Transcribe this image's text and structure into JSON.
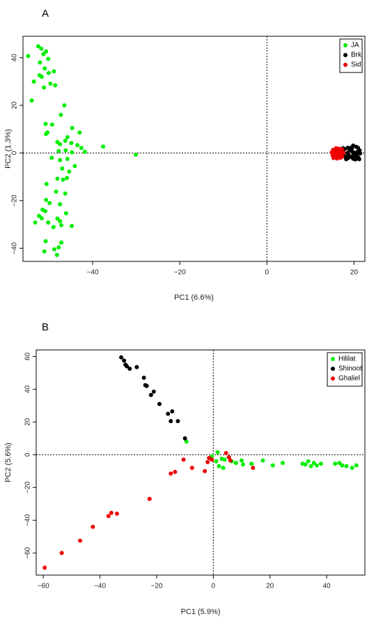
{
  "chart_data": [
    {
      "type": "scatter",
      "panel_label": "A",
      "xlabel": "PC1 (6.6%)",
      "ylabel": "PC2 (1.3%)",
      "xlim": [
        -56,
        22.5
      ],
      "ylim": [
        -45.5,
        49
      ],
      "xticks": [
        -40,
        -20,
        0,
        20
      ],
      "yticks": [
        -40,
        -20,
        0,
        20,
        40
      ],
      "reference_lines": {
        "x": 0,
        "y": 0
      },
      "legend_position": "top-right",
      "series": [
        {
          "name": "JA",
          "color": "#00ee00",
          "points": [
            [
              -52.5,
              44.8
            ],
            [
              -51.8,
              43.8
            ],
            [
              -51.3,
              41.5
            ],
            [
              -50.7,
              42.6
            ],
            [
              -54.8,
              40.7
            ],
            [
              -50.2,
              39.5
            ],
            [
              -52.1,
              38.0
            ],
            [
              -51.0,
              35.5
            ],
            [
              -48.9,
              34.3
            ],
            [
              -50.1,
              33.6
            ],
            [
              -52.2,
              32.6
            ],
            [
              -51.7,
              32.0
            ],
            [
              -53.5,
              30.0
            ],
            [
              -49.7,
              29.1
            ],
            [
              -48.6,
              28.4
            ],
            [
              -51.2,
              27.5
            ],
            [
              -54.0,
              22.0
            ],
            [
              -46.5,
              20.0
            ],
            [
              -47.3,
              16.0
            ],
            [
              -50.8,
              12.2
            ],
            [
              -49.3,
              11.9
            ],
            [
              -44.7,
              10.5
            ],
            [
              -43.0,
              8.6
            ],
            [
              -50.4,
              8.6
            ],
            [
              -50.7,
              8.0
            ],
            [
              -45.8,
              6.6
            ],
            [
              -48.1,
              4.6
            ],
            [
              -46.3,
              5.1
            ],
            [
              -47.5,
              3.7
            ],
            [
              -44.9,
              4.2
            ],
            [
              -43.5,
              3.3
            ],
            [
              -42.6,
              2.1
            ],
            [
              -37.6,
              2.7
            ],
            [
              -47.8,
              0.8
            ],
            [
              -46.2,
              1.1
            ],
            [
              -44.8,
              0.3
            ],
            [
              -41.8,
              0.5
            ],
            [
              -30.1,
              -0.7
            ],
            [
              -49.4,
              -2.0
            ],
            [
              -47.5,
              -3.0
            ],
            [
              -45.8,
              -2.5
            ],
            [
              -44.1,
              -5.5
            ],
            [
              -47.0,
              -6.5
            ],
            [
              -45.4,
              -7.8
            ],
            [
              -48.1,
              -10.8
            ],
            [
              -46.8,
              -11.2
            ],
            [
              -45.9,
              -10.5
            ],
            [
              -50.6,
              -13.0
            ],
            [
              -48.4,
              -16.2
            ],
            [
              -46.3,
              -17.0
            ],
            [
              -50.7,
              -19.7
            ],
            [
              -47.5,
              -21.5
            ],
            [
              -49.9,
              -21.0
            ],
            [
              -51.5,
              -23.8
            ],
            [
              -50.9,
              -24.4
            ],
            [
              -46.1,
              -25.3
            ],
            [
              -52.3,
              -26.4
            ],
            [
              -51.7,
              -27.4
            ],
            [
              -48.1,
              -27.5
            ],
            [
              -47.5,
              -28.6
            ],
            [
              -50.2,
              -29.2
            ],
            [
              -53.2,
              -29.2
            ],
            [
              -47.2,
              -30.3
            ],
            [
              -44.8,
              -30.6
            ],
            [
              -49.0,
              -31.1
            ],
            [
              -50.8,
              -37.0
            ],
            [
              -47.2,
              -37.6
            ],
            [
              -47.8,
              -39.6
            ],
            [
              -48.8,
              -40.4
            ],
            [
              -51.1,
              -41.3
            ],
            [
              -48.2,
              -42.8
            ]
          ]
        },
        {
          "name": "Brk",
          "color": "#000000",
          "points": [
            [
              17.4,
              2.0
            ],
            [
              17.9,
              1.7
            ],
            [
              18.6,
              2.2
            ],
            [
              19.2,
              2.1
            ],
            [
              19.8,
              3.1
            ],
            [
              20.5,
              2.6
            ],
            [
              19.0,
              1.2
            ],
            [
              19.6,
              0.5
            ],
            [
              20.2,
              0.1
            ],
            [
              20.8,
              0.4
            ],
            [
              21.3,
              1.1
            ],
            [
              18.5,
              0.0
            ],
            [
              19.9,
              -0.4
            ],
            [
              20.6,
              -0.8
            ],
            [
              21.4,
              -0.2
            ],
            [
              18.8,
              -1.0
            ],
            [
              19.3,
              -1.6
            ],
            [
              20.1,
              -1.8
            ],
            [
              21.0,
              -1.9
            ],
            [
              17.9,
              -1.4
            ],
            [
              18.6,
              -2.2
            ],
            [
              20.3,
              -2.7
            ],
            [
              21.2,
              -2.6
            ],
            [
              17.2,
              -0.3
            ],
            [
              19.5,
              1.8
            ],
            [
              20.9,
              2.2
            ],
            [
              18.2,
              -2.6
            ],
            [
              19.8,
              -2.4
            ]
          ]
        },
        {
          "name": "Sid",
          "color": "#ee0000",
          "points": [
            [
              15.2,
              1.3
            ],
            [
              15.8,
              0.6
            ],
            [
              16.3,
              1.1
            ],
            [
              16.8,
              0.4
            ],
            [
              17.2,
              1.6
            ],
            [
              15.4,
              -0.2
            ],
            [
              16.0,
              -0.5
            ],
            [
              16.6,
              -0.1
            ],
            [
              17.0,
              -0.7
            ],
            [
              15.1,
              -1.0
            ],
            [
              15.7,
              -1.4
            ],
            [
              16.4,
              -1.2
            ],
            [
              17.3,
              -1.5
            ],
            [
              15.3,
              -2.1
            ],
            [
              16.1,
              -2.3
            ],
            [
              16.9,
              -2.0
            ],
            [
              14.9,
              0.3
            ],
            [
              16.5,
              1.8
            ],
            [
              17.6,
              0.2
            ],
            [
              15.9,
              2.0
            ]
          ]
        }
      ]
    },
    {
      "type": "scatter",
      "panel_label": "B",
      "xlabel": "PC1 (5.9%)",
      "ylabel": "PC2 (5.6%)",
      "xlim": [
        -62.5,
        53.5
      ],
      "ylim": [
        -73.5,
        64
      ],
      "xticks": [
        -60,
        -40,
        -20,
        0,
        20,
        40
      ],
      "yticks": [
        -60,
        -40,
        -20,
        0,
        20,
        40,
        60
      ],
      "reference_lines": {
        "x": 0,
        "y": 0
      },
      "legend_position": "top-right",
      "series": [
        {
          "name": "Hililat",
          "color": "#00ee00",
          "points": [
            [
              -9.5,
              8.0
            ],
            [
              1.5,
              1.5
            ],
            [
              3.0,
              -2.5
            ],
            [
              4.0,
              -3.0
            ],
            [
              5.5,
              -1.5
            ],
            [
              6.5,
              -4.0
            ],
            [
              8.0,
              -5.0
            ],
            [
              10.0,
              -3.5
            ],
            [
              10.5,
              -6.0
            ],
            [
              13.5,
              -5.5
            ],
            [
              17.5,
              -3.5
            ],
            [
              21.0,
              -6.5
            ],
            [
              24.5,
              -5.0
            ],
            [
              2.0,
              -7.0
            ],
            [
              31.5,
              -5.5
            ],
            [
              32.5,
              -6.0
            ],
            [
              33.5,
              -4.0
            ],
            [
              34.5,
              -7.0
            ],
            [
              35.5,
              -5.0
            ],
            [
              36.5,
              -6.5
            ],
            [
              38.0,
              -5.5
            ],
            [
              43.0,
              -5.5
            ],
            [
              44.5,
              -5.0
            ],
            [
              45.5,
              -6.5
            ],
            [
              47.0,
              -7.0
            ],
            [
              49.0,
              -8.0
            ],
            [
              50.5,
              -6.5
            ],
            [
              3.5,
              -8.0
            ],
            [
              1.0,
              -4.0
            ],
            [
              -0.5,
              -1.0
            ]
          ]
        },
        {
          "name": "Shinoot",
          "color": "#000000",
          "points": [
            [
              -32.5,
              59.5
            ],
            [
              -31.5,
              57.5
            ],
            [
              -31.0,
              55.0
            ],
            [
              -30.5,
              54.0
            ],
            [
              -29.5,
              52.5
            ],
            [
              -27.0,
              53.5
            ],
            [
              -24.5,
              47.0
            ],
            [
              -24.0,
              42.5
            ],
            [
              -23.5,
              42.0
            ],
            [
              -22.0,
              36.5
            ],
            [
              -21.0,
              38.5
            ],
            [
              -19.0,
              31.0
            ],
            [
              -16.0,
              25.0
            ],
            [
              -15.0,
              20.5
            ],
            [
              -14.5,
              26.5
            ],
            [
              -12.5,
              20.5
            ],
            [
              -10.0,
              10.0
            ]
          ]
        },
        {
          "name": "Ghaliel",
          "color": "#ee0000",
          "points": [
            [
              -59.5,
              -69.0
            ],
            [
              -53.5,
              -60.0
            ],
            [
              -47.0,
              -52.5
            ],
            [
              -42.5,
              -44.0
            ],
            [
              -37.0,
              -37.5
            ],
            [
              -36.0,
              -35.5
            ],
            [
              -34.0,
              -36.0
            ],
            [
              -22.5,
              -27.0
            ],
            [
              -15.0,
              -11.5
            ],
            [
              -13.5,
              -10.5
            ],
            [
              -10.5,
              -3.0
            ],
            [
              -7.5,
              -8.0
            ],
            [
              -3.0,
              -10.0
            ],
            [
              -2.0,
              -4.5
            ],
            [
              -1.5,
              -2.0
            ],
            [
              -0.5,
              -3.0
            ],
            [
              4.5,
              1.0
            ],
            [
              5.5,
              -1.5
            ],
            [
              6.0,
              -3.5
            ],
            [
              14.0,
              -8.0
            ]
          ]
        }
      ]
    }
  ]
}
